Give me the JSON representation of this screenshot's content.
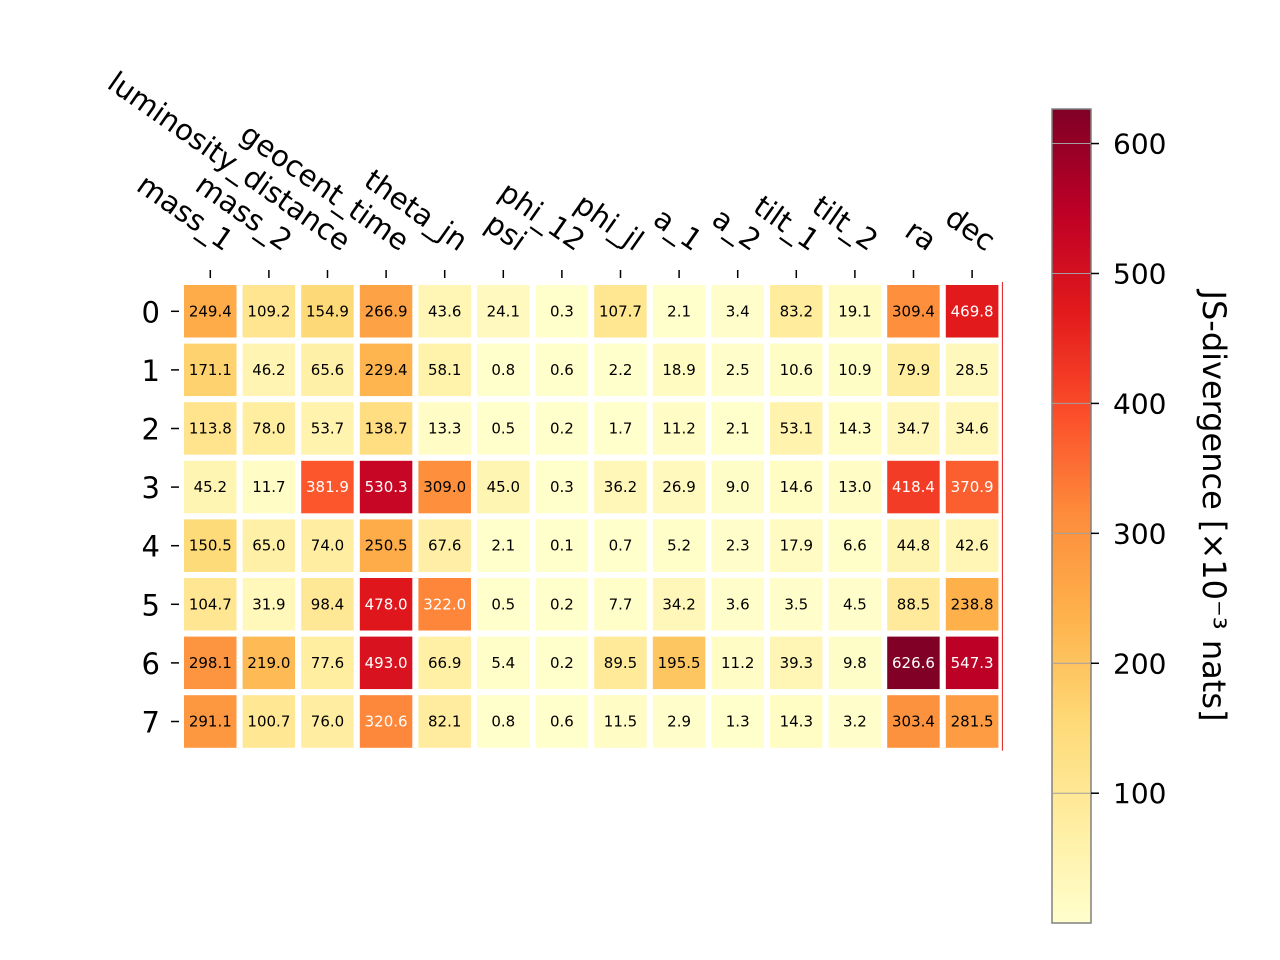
{
  "chart_data": {
    "type": "heatmap",
    "columns": [
      "mass_1",
      "mass_2",
      "luminosity_distance",
      "geocent_time",
      "theta_jn",
      "psi",
      "phi_12",
      "phi_jl",
      "a_1",
      "a_2",
      "tilt_1",
      "tilt_2",
      "ra",
      "dec"
    ],
    "rows": [
      "0",
      "1",
      "2",
      "3",
      "4",
      "5",
      "6",
      "7"
    ],
    "values": [
      [
        249.4,
        109.2,
        154.9,
        266.9,
        43.6,
        24.1,
        0.3,
        107.7,
        2.1,
        3.4,
        83.2,
        19.1,
        309.4,
        469.8
      ],
      [
        171.1,
        46.2,
        65.6,
        229.4,
        58.1,
        0.8,
        0.6,
        2.2,
        18.9,
        2.5,
        10.6,
        10.9,
        79.9,
        28.5
      ],
      [
        113.8,
        78.0,
        53.7,
        138.7,
        13.3,
        0.5,
        0.2,
        1.7,
        11.2,
        2.1,
        53.1,
        14.3,
        34.7,
        34.6
      ],
      [
        45.2,
        11.7,
        381.9,
        530.3,
        309.0,
        45.0,
        0.3,
        36.2,
        26.9,
        9.0,
        14.6,
        13.0,
        418.4,
        370.9
      ],
      [
        150.5,
        65.0,
        74.0,
        250.5,
        67.6,
        2.1,
        0.1,
        0.7,
        5.2,
        2.3,
        17.9,
        6.6,
        44.8,
        42.6
      ],
      [
        104.7,
        31.9,
        98.4,
        478.0,
        322.0,
        0.5,
        0.2,
        7.7,
        34.2,
        3.6,
        3.5,
        4.5,
        88.5,
        238.8
      ],
      [
        298.1,
        219.0,
        77.6,
        493.0,
        66.9,
        5.4,
        0.2,
        89.5,
        195.5,
        11.2,
        39.3,
        9.8,
        626.6,
        547.3
      ],
      [
        291.1,
        100.7,
        76.0,
        320.6,
        82.1,
        0.8,
        0.6,
        11.5,
        2.9,
        1.3,
        14.3,
        3.2,
        303.4,
        281.5
      ]
    ],
    "colormap": "YlOrRd",
    "colorbar": {
      "label": "JS-divergence [×10⁻³ nats]",
      "range": [
        0.1,
        626.6
      ],
      "ticks": [
        100,
        200,
        300,
        400,
        500,
        600
      ]
    },
    "text_color_threshold": 313.3
  },
  "colors": {
    "low": "#ffffcc",
    "high": "#800026",
    "cell_border": "#ffffff",
    "colorbar_frame": "#808080"
  }
}
